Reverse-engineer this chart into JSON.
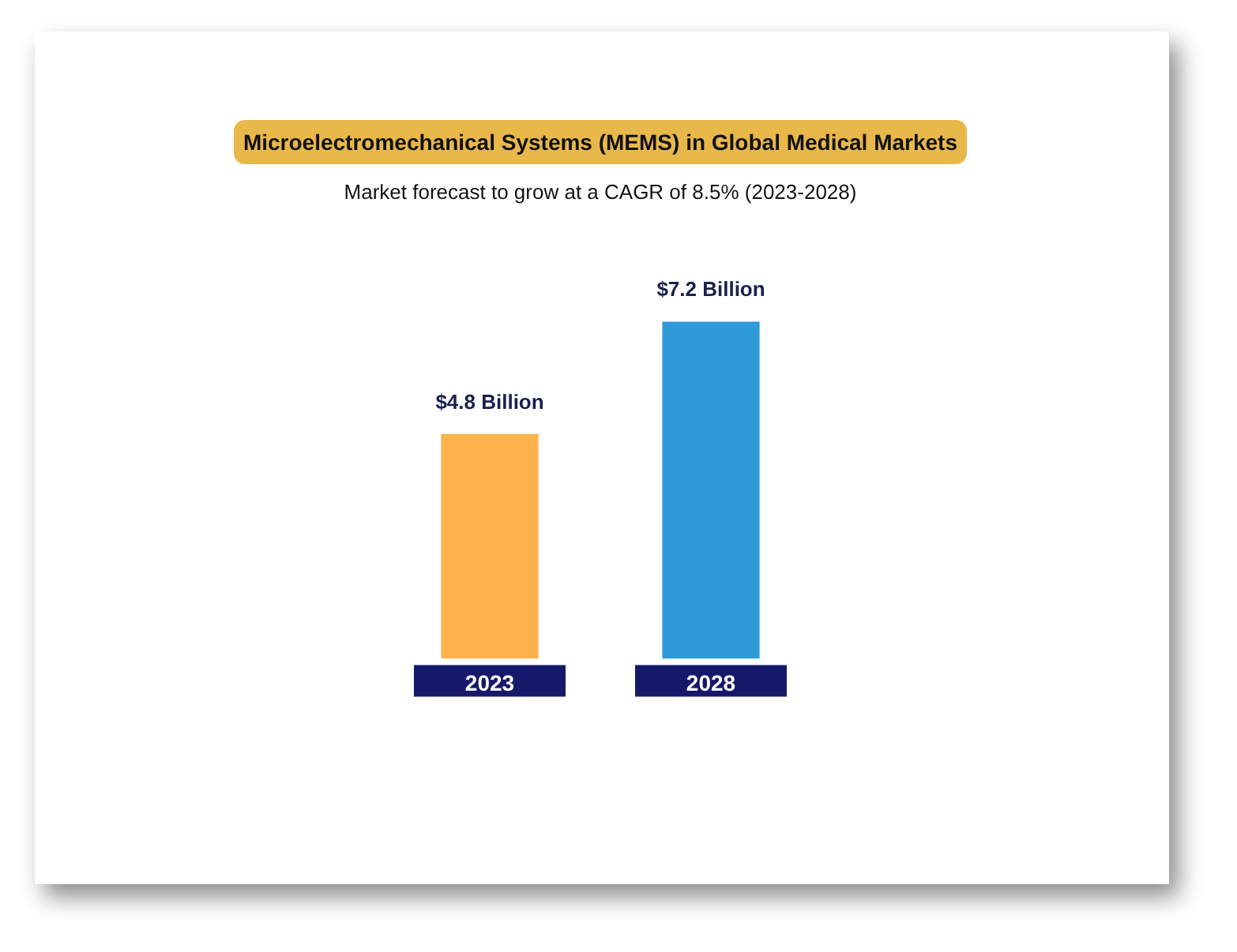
{
  "chart_data": {
    "type": "bar",
    "title": "Microelectromechanical Systems (MEMS) in Global Medical Markets",
    "subtitle": "Market forecast to grow at a CAGR of 8.5% (2023-2028)",
    "categories": [
      "2023",
      "2028"
    ],
    "values": [
      4.8,
      7.2
    ],
    "colors": [
      "#fdb24c",
      "#2f9ad8"
    ],
    "value_labels": [
      "$4.8 Billion",
      "$7.2 Billion"
    ],
    "grid": false,
    "legend": false
  }
}
